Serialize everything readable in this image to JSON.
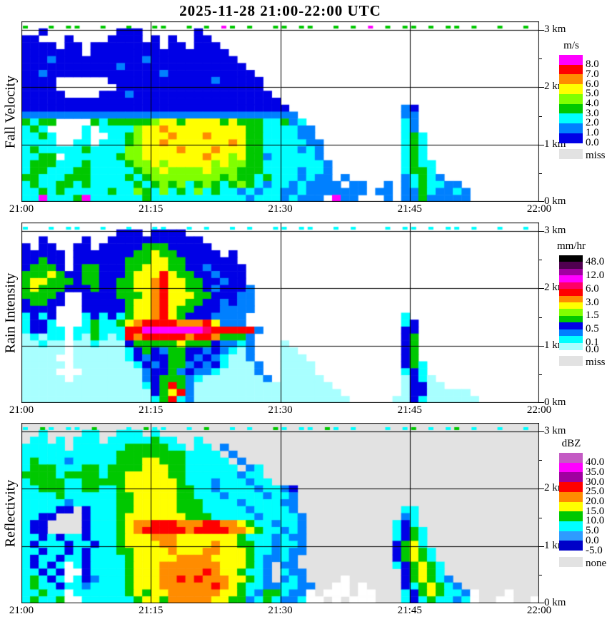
{
  "title": "2025-11-28  21:00-22:00 UTC",
  "chart_data": {
    "type": "heatmap",
    "x_ticks": [
      "21:00",
      "21:15",
      "21:30",
      "21:45",
      "22:00"
    ],
    "y_ticks": [
      "3 km",
      "2 km",
      "1 km",
      "0 km"
    ],
    "y_unit": "km",
    "x_range": [
      "21:00",
      "22:00"
    ],
    "grid_lines": "on",
    "palette": {
      "B": "#0000E6",
      "b": "#0080FF",
      "c": "#00FFFF",
      "a": "#A8FFFF",
      "g": "#00C800",
      "y": "#80FF00",
      "Y": "#FFFF00",
      "o": "#FF8C00",
      "r": "#FF0000",
      "p": "#FF0066",
      "m": "#FF00FF",
      "P": "#A000A0",
      "k": "#000000",
      "d": "#500050",
      "O": "#C45AC4",
      "w": "#FFFFFF"
    },
    "panels": [
      {
        "id": "fall-velocity",
        "ylabel": "Fall Velocity",
        "background": "#FFFFFF",
        "legend": {
          "title": "m/s",
          "boxes": [
            {
              "color": "#FF00FF",
              "label": "8.0"
            },
            {
              "color": "#FF0000",
              "label": "7.0"
            },
            {
              "color": "#FF8C00",
              "label": "6.0"
            },
            {
              "color": "#FFFF00",
              "label": "5.0"
            },
            {
              "color": "#80FF00",
              "label": "4.0"
            },
            {
              "color": "#00C800",
              "label": "3.0"
            },
            {
              "color": "#00FFFF",
              "label": "2.0"
            },
            {
              "color": "#0080FF",
              "label": "1.0"
            },
            {
              "color": "#0000E6",
              "label": "0.0"
            }
          ],
          "no_data": {
            "color": "#E2E2E2",
            "label": "miss"
          }
        },
        "markers": [
          "g..g.gg..g",
          "..g..gg..g",
          ".g.mg.g..g",
          "g.gg..g.g.",
          "m.g.gg.g.g",
          "g.g..g..g."
        ],
        "grid": [
          [
            "..........",
            "..........",
            "..........",
            "..........",
            "..........",
            ".........."
          ],
          [
            "..B.......",
            ".BBB......",
            "B.........",
            "..........",
            "..........",
            ".........."
          ],
          [
            "BB...B....",
            "BBBB.B.B..",
            "BB........",
            "..........",
            "..........",
            ".........."
          ],
          [
            "BBBB.BB.BB",
            "BBBBBB.BB.",
            "BBB.......",
            "..........",
            "..........",
            ".........."
          ],
          [
            "BBBBBBB.BB",
            "BBBBBBBBBB",
            "BBBB......",
            "..........",
            "..........",
            ".........."
          ],
          [
            "BBBbBBBBBB",
            "BBBBbBBBBB",
            "BBBBB.....",
            "..........",
            "..........",
            ".........."
          ],
          [
            "BBBBBBBBBB",
            "BbBBBBBBBB",
            "BBBBBB....",
            "..........",
            "..........",
            ".........."
          ],
          [
            "BBbBBBBBBB",
            "BBBBBBbBBB",
            "BBBBBBB...",
            "..........",
            "..........",
            ".........."
          ],
          [
            "BBBB......",
            "BBBBBBBBBB",
            "BBbBBBBB..",
            "..........",
            "..........",
            ".........."
          ],
          [
            "BBBB......",
            ".BBBBBBBBB",
            "BBBBBBBB..",
            "..........",
            "..........",
            ".........."
          ],
          [
            "BBBBB....B",
            "BBbBBBBBBB",
            "BBBBBBBBB.",
            "..........",
            "..........",
            ".........."
          ],
          [
            "BBBBBBBBBB",
            "BBBBBBBBBB",
            "BBBBBBBBBB",
            "..........",
            "..........",
            ".........."
          ],
          [
            "BBBBBBBBBB",
            "BBBBBBBBBB",
            "BBBBBBBBBB",
            "B.........",
            "....bB....",
            ".........."
          ],
          [
            "bbbbbbbbbb",
            "bbbbbbbbbb",
            "bbbbbbbbbb",
            "bb........",
            "....bb....",
            ".........."
          ],
          [
            "gcgg....gc",
            "gggggyYYgY",
            "YYYgYgggcc",
            "gbc.......",
            "....cb....",
            ".........."
          ],
          [
            "cgc....c.c",
            "cccyYYoYYY",
            "YYYYYYggcc",
            "ccbb......",
            "....cb....",
            ".........."
          ],
          [
            "ccgc...c..",
            "ccgyYYYoYY",
            "YoYYYYggcc",
            "ccbb......",
            "....cgc...",
            ".........."
          ],
          [
            "cccc..cc.c",
            "ccgyYYoYYY",
            "YYYYoYggcc",
            "cccbb.....",
            "....cgc...",
            ".........."
          ],
          [
            "cgcccccgcc",
            "ccyyYYYYoY",
            "YYoYYYggcc",
            "ccbcb.....",
            "....cgc...",
            ".........."
          ],
          [
            "ccgg.ccccc",
            "cgyyYYYYYY",
            "YoYYyYggbc",
            "ccccb.....",
            "....cgc...",
            ".........."
          ],
          [
            "cgggcccgcc",
            "ccgyyYyYYY",
            "YYyYyyggcc",
            "cccccb....",
            "....cgcc..",
            ".........."
          ],
          [
            "cggcccggcc",
            "cccgyyYyyy",
            "yYyyygggcc",
            "ccbccb....",
            "....cggc..",
            ".........."
          ],
          [
            "ggcccgggcc",
            "ccgcgyyyyy",
            "yyygyggcgc",
            "ccbcbb.b..",
            "....bcgcb.",
            ".........."
          ],
          [
            "cgccggcgcc",
            "cccgcgygyc",
            "gygcgygcbc",
            "cbcbbbb.bb",
            "..b.bcgccb",
            "b........."
          ],
          [
            "ccgcgccccc",
            "gccygcycgc",
            "ycgccbcbcc",
            "bbcbbbbbbb",
            ".bb.bbgcbb",
            "cb........"
          ],
          [
            "ccmcccgmcc",
            "ccccgccccc",
            "ccccccbccc",
            "bcbbb.mbb.",
            "..b.bbgbbb",
            "bb........"
          ]
        ]
      },
      {
        "id": "rain-intensity",
        "ylabel": "Rain Intensity",
        "background": "#FFFFFF",
        "legend": {
          "title": "mm/hr",
          "boxes": [
            {
              "color": "#000000",
              "label": "48.0"
            },
            {
              "color": "#500050",
              "label": ""
            },
            {
              "color": "#A000A0",
              "label": "12.0"
            },
            {
              "color": "#FF00FF",
              "label": ""
            },
            {
              "color": "#FF0066",
              "label": "6.0"
            },
            {
              "color": "#FF0000",
              "label": ""
            },
            {
              "color": "#FF8C00",
              "label": "3.0"
            },
            {
              "color": "#FFFF00",
              "label": ""
            },
            {
              "color": "#80FF00",
              "label": "1.5"
            },
            {
              "color": "#00C800",
              "label": ""
            },
            {
              "color": "#0000E6",
              "label": "0.5"
            },
            {
              "color": "#0080FF",
              "label": ""
            },
            {
              "color": "#00FFFF",
              "label": "0.1"
            },
            {
              "color": "#A8FFFF",
              "label": "0.0"
            }
          ],
          "no_data": {
            "color": "#E2E2E2",
            "label": "miss"
          }
        },
        "markers": [
          "c..c.cc..c",
          "..c..cc..c",
          ".c..c.c..c",
          "c.cc..c.c.",
          "..c.cc.c.c",
          "c.c..c..c."
        ],
        "grid": [
          [
            "..........",
            "..........",
            "..........",
            "..........",
            "..........",
            ".........."
          ],
          [
            "..........",
            ".BBB.BBBB.",
            "..........",
            "..........",
            "..........",
            ".........."
          ],
          [
            "..B....B..",
            "BBBBBBBBBB",
            "B.........",
            "..........",
            "..........",
            ".........."
          ],
          [
            "B.BB..BB.B",
            "BBBBgggBBB",
            "BB........",
            "..........",
            "..........",
            ".........."
          ],
          [
            "BBBBB.BBBB",
            "BBBggYggBB",
            "BBB.B.....",
            "..........",
            "..........",
            ".........."
          ],
          [
            "BBgBB.BBBB",
            "BBgggYYggB",
            "BBBBB.....",
            "..........",
            "..........",
            ".........."
          ],
          [
            "BgggB.BggB",
            "BBggYYYggB",
            "BbBBBB....",
            "..........",
            "..........",
            ".........."
          ],
          [
            "gggYgBBggB",
            "BBgYYYrYgg",
            "BBbBBB....",
            "..........",
            "..........",
            ".........."
          ],
          [
            "gYYgggBggB",
            "BggYYorYYg",
            "gBBbBB....",
            "..........",
            "..........",
            ".........."
          ],
          [
            "gYgggBBBgB",
            "BggYYorYYg",
            "gBbBBBb...",
            "..........",
            "..........",
            ".........."
          ],
          [
            "ggggB..BBB",
            "BgggYorYYY",
            "ggBBBbb...",
            "..........",
            "..........",
            ".........."
          ],
          [
            "BggBB..BBB",
            "BBgYYorYYg",
            "gBBbBbb...",
            "..........",
            "..........",
            ".........."
          ],
          [
            "BBBB...BBB",
            "BBgYYorYgg",
            "BBBbbbb...",
            "..........",
            "..........",
            ".........."
          ],
          [
            "cBcB...cBc",
            "BcgYYorYgB",
            "BBbbbb....",
            "..........",
            "....c.....",
            ".........."
          ],
          [
            "cBBc...cgc",
            "cgYorrrroo",
            "orYbbb....",
            "..........",
            "....cB....",
            ".........."
          ],
          [
            "cBBcc.ccgc",
            "ccrrmmmmmm",
            "mprrrrrb..",
            "..........",
            "....BB....",
            ".........."
          ],
          [
            "acacc.cagc",
            "acrorrrrro",
            "rrogggb...",
            "..........",
            "....Bg....",
            ".........."
          ],
          [
            "aacaa.aaca",
            "aaBgggggYg",
            "ggBbbcb...",
            "a.........",
            "....Bg....",
            ".........."
          ],
          [
            "aaaaa.aaaa",
            "aacBgBbggB",
            "BbBbcab...",
            "aa........",
            "....Bg....",
            ".........."
          ],
          [
            "aaaa..aaaa",
            "aacBbBBggB",
            "bBbcaab...",
            "aaa.......",
            "....Bg....",
            ".........."
          ],
          [
            "aaaaa.aaaa",
            "aaacBbBggb",
            "BbBcaaab..",
            "aaaa......",
            "....Bgc...",
            ".........."
          ],
          [
            "aaaa...aaa",
            "aaaabBBgbB",
            "bbcaaaab..",
            "aaaa......",
            "....cBc...",
            ".........."
          ],
          [
            "aaaaa.aaaa",
            "aaaabBgggb",
            "caaaaaaab.",
            "aaaaa.....",
            "....aBca..",
            ".........."
          ],
          [
            "aaaaaaaaaa",
            "aaaacBgrgb",
            "aaaaaaaaaa",
            "aaaaaa....",
            "....aBBaa.",
            ".........."
          ],
          [
            "aaaaaaaaaa",
            "aaaaaBgYrb",
            "aaaaaaaaaa",
            "aaaaaaa...",
            "....aBBaaa",
            "aa........"
          ],
          [
            "aaaaaaaaaa",
            "aaaaacgrcb",
            "aaaaaaaaaa",
            "aaaaaaaa..",
            "...aaBcaaa",
            "aaa......."
          ]
        ]
      },
      {
        "id": "reflectivity",
        "ylabel": "Reflectivity",
        "background": "#E2E2E2",
        "legend": {
          "title": "dBZ",
          "boxes": [
            {
              "color": "#C45AC4",
              "label": "40.0"
            },
            {
              "color": "#FF00FF",
              "label": "35.0"
            },
            {
              "color": "#A000A0",
              "label": "30.0"
            },
            {
              "color": "#FF0000",
              "label": "25.0"
            },
            {
              "color": "#FF8C00",
              "label": "20.0"
            },
            {
              "color": "#FFFF00",
              "label": "15.0"
            },
            {
              "color": "#00C800",
              "label": "10.0"
            },
            {
              "color": "#00FFFF",
              "label": "5.0"
            },
            {
              "color": "#2E9BFF",
              "label": "0.0"
            },
            {
              "color": "#0000C8",
              "label": "-5.0"
            }
          ],
          "no_data": {
            "color": "#E2E2E2",
            "label": "none"
          }
        },
        "markers": [
          "c.gc.cc.g.",
          "..c.gcc..c",
          ".g..c.c..g",
          "c.cc.gc.c.",
          "..c.cg.c.c",
          "g.c..c..c."
        ],
        "grid": [
          [
            "..........",
            "..........",
            "..........",
            "..........",
            "..........",
            ".........."
          ],
          [
            "..c....cc.",
            ".ccc.c....",
            "..........",
            "..........",
            "..........",
            ".........."
          ],
          [
            ".cc.c.ccc.",
            "cccccgcc..",
            "c.........",
            "..........",
            "..........",
            ".........."
          ],
          [
            "ccccc.cccc",
            "ccgggggcc.",
            "cc.b......",
            "..........",
            "..........",
            ".........."
          ],
          [
            "cccccccccc",
            "cggggggggc",
            "ccc.b.....",
            "..........",
            "..........",
            ".........."
          ],
          [
            "cgcccbcccc",
            "cgggYYgggc",
            "cccc.b....",
            "..........",
            "..........",
            ".........."
          ],
          [
            "cgggcccggc",
            "ggggYYYggc",
            "ccccc.bc..",
            "..........",
            "..........",
            ".........."
          ],
          [
            "ggggcggggc",
            "ggYYYYYggc",
            "cccccbcc..",
            "..........",
            "..........",
            ".........."
          ],
          [
            "cggggccggg",
            "ggYYYYYYgc",
            "ccbcccbcc.",
            "..........",
            "..........",
            ".........."
          ],
          [
            "ccgggccggc",
            "cgYYYYYYgg",
            "ccbccccbcc",
            "bB........",
            "..........",
            ".........."
          ],
          [
            "ccccgccccc",
            "cggYYYYYgg",
            "cccbccccbc",
            "cb........",
            "..........",
            ".........."
          ],
          [
            "cccccbcccc",
            "cggYYYYYgg",
            "gccccbcccc",
            "bb........",
            "..........",
            ".........."
          ],
          [
            "ccccBB.Bcc",
            "cggYYYYYgg",
            "gcccccbccc",
            "cb........",
            "....cc....",
            ".........."
          ],
          [
            "ccBB...Bcc",
            "cgYYYYYYYg",
            "ggcccccbcc",
            "ccb.......",
            "....bc....",
            ".........."
          ],
          [
            "cBB....Bcc",
            "cgYoorrroo",
            "orrooYgccb",
            "ccb.......",
            "...cBc....",
            ".........."
          ],
          [
            "cBB....Bcc",
            "cgYorrrrro",
            "rrrrooYgcc",
            "bcb.......",
            "...cBgc...",
            ".........."
          ],
          [
            "ccBcBccBcc",
            "cgYYYoooYY",
            "YYYYYgcccb",
            "cbb.......",
            "...cBgc...",
            ".........."
          ],
          [
            "cBcccBccBc",
            "cgYYYYooYY",
            "YYoYYggccb",
            "ccb.......",
            "...BgYc...",
            ".........."
          ],
          [
            "ccBccBcBcc",
            "cggYYYYoYY",
            "YooYYYgccb",
            "cbb.......",
            "...BgYgc..",
            ".........."
          ],
          [
            "cBccBccBcc",
            "ccgYYYYYoo",
            "ooYYYYgcbb",
            "cb........",
            "...BgYgc..",
            ".........."
          ],
          [
            "cBcBcwcBcc",
            "ccgYYYoooo",
            "oooYYYgcb.",
            "bb........",
            "...cBgYgc.",
            ".........."
          ],
          [
            "ccBcBwwBcc",
            "ccgYYYoooo",
            "oroYYgccb.",
            "cbb.......",
            "....BgYgc.",
            ".........."
          ],
          [
            "cgcBcwcBbc",
            "ccgYYYooro",
            "roooYYgcb.",
            "bcb....w..",
            "....BgYgcb",
            ".........."
          ],
          [
            "cgccBccbcc",
            "ccgYYYoooo",
            "ooroYgccbb",
            "ccbb..ww.w",
            "....BcgYgc",
            "b........."
          ],
          [
            "ccgccwcccc",
            "ccgYgYYooo",
            "oooYYgcbgg",
            "cbbw.www.w",
            "w...cBgYgc",
            "cbw...w..."
          ],
          [
            "cgccgwwccc",
            "cccgYYgooo",
            "ooYYggbcgc",
            "bbcww.w.ww",
            "w...cBcgcc",
            "bcw..ww..w"
          ]
        ]
      }
    ]
  }
}
